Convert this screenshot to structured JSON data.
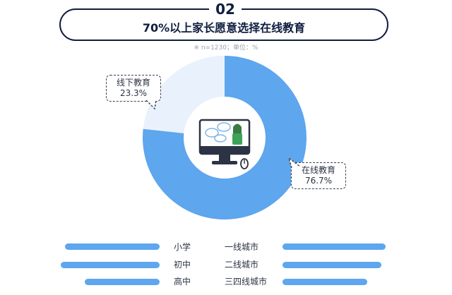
{
  "header": {
    "section_number": "02",
    "title": "70%以上家长愿意选择在线教育",
    "note": "※ n=1230；单位：%"
  },
  "chart_data": {
    "type": "pie",
    "categories": [
      "在线教育",
      "线下教育"
    ],
    "values": [
      76.7,
      23.3
    ],
    "labels": [
      "76.7%",
      "23.3%"
    ],
    "colors": {
      "online": "#5ea6ee",
      "offline": "#e9f2fc"
    }
  },
  "legend": {
    "left": [
      "小学",
      "初中",
      "高中"
    ],
    "right": [
      "一线城市",
      "二线城市",
      "三四线城市"
    ]
  },
  "colors": {
    "dark": "#0f1e3f",
    "bar": "#5ea6ee"
  }
}
